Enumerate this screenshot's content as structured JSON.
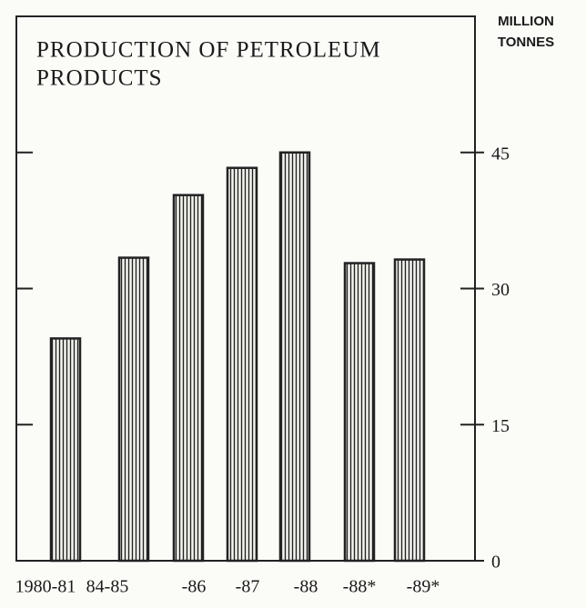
{
  "chart_data": {
    "type": "bar",
    "title": [
      "PRODUCTION OF PETROLEUM",
      "PRODUCTS"
    ],
    "y_axis_label": [
      "MILLION",
      "TONNES"
    ],
    "categories": [
      "1980-81",
      "84-85",
      "-86",
      "-87",
      "-88",
      "-88*",
      "-89*"
    ],
    "values": [
      24.5,
      33.4,
      40.3,
      43.3,
      45.0,
      32.8,
      33.2
    ],
    "color": "#222222",
    "ylim": [
      0,
      60
    ],
    "yticks": [
      0,
      15,
      30,
      45
    ],
    "y_axis_side": "right",
    "grid": false
  }
}
